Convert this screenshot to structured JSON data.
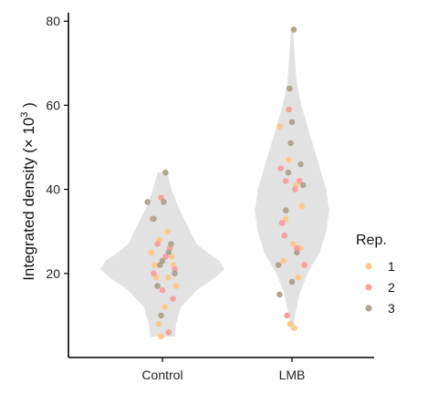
{
  "chart_data": {
    "type": "scatter",
    "subtype": "violin with jittered points",
    "ylabel_main": "Integrated density (",
    "ylabel_times": "× 10",
    "ylabel_exp": "3",
    "ylabel_close": " )",
    "ylim": [
      0,
      82
    ],
    "yticks": [
      20,
      40,
      60,
      80
    ],
    "categories": [
      "Control",
      "LMB"
    ],
    "legend": {
      "title": "Rep.",
      "position": "right",
      "entries": [
        {
          "label": "1",
          "color": "#FDC98A"
        },
        {
          "label": "2",
          "color": "#F8A1A1"
        },
        {
          "label": "3",
          "color": "#AFA590"
        }
      ]
    },
    "violin_color": "#E2E2E2",
    "violins": [
      {
        "category": "Control",
        "profile": [
          [
            5,
            0.2
          ],
          [
            8,
            0.22
          ],
          [
            12,
            0.3
          ],
          [
            16,
            0.55
          ],
          [
            19,
            0.85
          ],
          [
            21,
            1.0
          ],
          [
            23,
            0.92
          ],
          [
            25,
            0.72
          ],
          [
            27,
            0.55
          ],
          [
            30,
            0.45
          ],
          [
            33,
            0.35
          ],
          [
            36,
            0.25
          ],
          [
            40,
            0.15
          ],
          [
            44,
            0.08
          ]
        ]
      },
      {
        "category": "LMB",
        "profile": [
          [
            6.5,
            0.02
          ],
          [
            10,
            0.05
          ],
          [
            15,
            0.12
          ],
          [
            20,
            0.25
          ],
          [
            25,
            0.45
          ],
          [
            30,
            0.55
          ],
          [
            35,
            0.6
          ],
          [
            40,
            0.55
          ],
          [
            45,
            0.45
          ],
          [
            50,
            0.35
          ],
          [
            55,
            0.25
          ],
          [
            60,
            0.15
          ],
          [
            65,
            0.08
          ],
          [
            70,
            0.05
          ],
          [
            75,
            0.03
          ],
          [
            78,
            0.02
          ]
        ]
      }
    ],
    "series": [
      {
        "name": "1",
        "color": "#FDC98A",
        "points": [
          [
            "Control",
            -0.18,
            25
          ],
          [
            "Control",
            -0.12,
            22
          ],
          [
            "Control",
            -0.05,
            28
          ],
          [
            "Control",
            0.08,
            30
          ],
          [
            "Control",
            0.15,
            24
          ],
          [
            "Control",
            0.22,
            17
          ],
          [
            "Control",
            -0.02,
            5
          ],
          [
            "Control",
            -0.06,
            8
          ],
          [
            "Control",
            0.04,
            12
          ],
          [
            "Control",
            0.1,
            19
          ],
          [
            "Control",
            -0.1,
            19
          ],
          [
            "Control",
            0.18,
            22
          ],
          [
            "LMB",
            -0.2,
            55
          ],
          [
            "LMB",
            -0.05,
            47
          ],
          [
            "LMB",
            0.06,
            41
          ],
          [
            "LMB",
            0.16,
            36
          ],
          [
            "LMB",
            -0.1,
            33
          ],
          [
            "LMB",
            0.02,
            27
          ],
          [
            "LMB",
            -0.14,
            23
          ],
          [
            "LMB",
            0.1,
            19
          ],
          [
            "LMB",
            0.14,
            26
          ],
          [
            "LMB",
            -0.03,
            8
          ],
          [
            "LMB",
            0.04,
            7
          ]
        ]
      },
      {
        "name": "2",
        "color": "#F8A1A1",
        "points": [
          [
            "Control",
            -0.02,
            38
          ],
          [
            "Control",
            -0.16,
            33
          ],
          [
            "Control",
            -0.08,
            27
          ],
          [
            "Control",
            0.05,
            24
          ],
          [
            "Control",
            0.12,
            26
          ],
          [
            "Control",
            -0.14,
            20
          ],
          [
            "Control",
            0.0,
            16
          ],
          [
            "Control",
            0.17,
            14
          ],
          [
            "Control",
            0.2,
            21
          ],
          [
            "Control",
            0.1,
            6
          ],
          [
            "LMB",
            -0.05,
            59
          ],
          [
            "LMB",
            -0.18,
            45
          ],
          [
            "LMB",
            -0.1,
            42
          ],
          [
            "LMB",
            0.05,
            40
          ],
          [
            "LMB",
            0.12,
            42
          ],
          [
            "LMB",
            -0.16,
            32
          ],
          [
            "LMB",
            0.08,
            26
          ],
          [
            "LMB",
            0.2,
            22
          ],
          [
            "LMB",
            -0.12,
            29
          ],
          [
            "LMB",
            -0.08,
            10
          ]
        ]
      },
      {
        "name": "3",
        "color": "#AFA590",
        "points": [
          [
            "Control",
            -0.24,
            37
          ],
          [
            "Control",
            0.02,
            37
          ],
          [
            "Control",
            0.05,
            44
          ],
          [
            "Control",
            -0.14,
            33
          ],
          [
            "Control",
            0.14,
            27
          ],
          [
            "Control",
            0.1,
            25
          ],
          [
            "Control",
            0.0,
            23
          ],
          [
            "Control",
            -0.04,
            22
          ],
          [
            "Control",
            -0.08,
            17
          ],
          [
            "Control",
            0.2,
            20
          ],
          [
            "Control",
            -0.02,
            10
          ],
          [
            "LMB",
            0.03,
            78
          ],
          [
            "LMB",
            -0.04,
            64
          ],
          [
            "LMB",
            0.0,
            56
          ],
          [
            "LMB",
            -0.02,
            51
          ],
          [
            "LMB",
            0.14,
            46
          ],
          [
            "LMB",
            -0.06,
            44
          ],
          [
            "LMB",
            0.18,
            41
          ],
          [
            "LMB",
            -0.1,
            35
          ],
          [
            "LMB",
            0.08,
            25
          ],
          [
            "LMB",
            -0.22,
            22
          ],
          [
            "LMB",
            -0.2,
            15
          ],
          [
            "LMB",
            0.0,
            18
          ]
        ]
      }
    ]
  }
}
